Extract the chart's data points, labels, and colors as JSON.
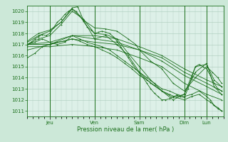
{
  "xlabel": "Pression niveau de la mer( hPa )",
  "bg_color": "#cce8d8",
  "plot_bg_color": "#ddf0e8",
  "line_color": "#1a6e1a",
  "grid_color": "#aaccbb",
  "tick_color": "#1a6e1a",
  "ylim": [
    1010.5,
    1020.5
  ],
  "yticks": [
    1011,
    1012,
    1013,
    1014,
    1015,
    1016,
    1017,
    1018,
    1019,
    1020
  ],
  "day_labels": [
    "Jeu",
    "Ven",
    "Sam",
    "Dim",
    "Lun"
  ],
  "day_positions": [
    24,
    72,
    120,
    168,
    192
  ],
  "xlim": [
    0,
    210
  ],
  "series": [
    {
      "x": [
        0,
        4,
        8,
        12,
        16,
        20,
        24,
        28,
        32,
        36,
        40,
        44,
        48,
        52,
        56,
        60,
        64,
        68,
        72,
        76,
        80,
        84,
        88,
        92,
        96,
        100,
        104,
        108,
        112,
        116,
        120,
        124,
        128,
        132,
        136,
        140,
        144,
        148,
        152,
        156,
        160,
        164,
        168,
        172,
        176,
        180,
        184,
        188,
        192,
        196,
        200,
        204,
        208
      ],
      "y": [
        1017.0,
        1017.2,
        1017.5,
        1017.7,
        1017.9,
        1017.8,
        1018.0,
        1018.5,
        1019.0,
        1019.3,
        1019.7,
        1020.0,
        1020.2,
        1020.0,
        1019.6,
        1019.1,
        1018.6,
        1018.3,
        1018.0,
        1018.1,
        1018.2,
        1018.1,
        1018.0,
        1017.7,
        1017.3,
        1016.8,
        1016.3,
        1015.8,
        1015.3,
        1014.8,
        1014.4,
        1014.0,
        1013.5,
        1013.0,
        1012.6,
        1012.3,
        1012.0,
        1012.0,
        1012.1,
        1012.3,
        1012.4,
        1012.3,
        1012.2,
        1013.0,
        1014.0,
        1015.0,
        1015.2,
        1015.0,
        1014.8,
        1014.2,
        1013.5,
        1013.0,
        1012.8
      ]
    },
    {
      "x": [
        0,
        12,
        24,
        36,
        48,
        60,
        72,
        84,
        96,
        108,
        120,
        132,
        144,
        156,
        168,
        180,
        192,
        200,
        208
      ],
      "y": [
        1017.0,
        1017.5,
        1017.8,
        1018.8,
        1020.0,
        1019.3,
        1018.0,
        1017.9,
        1017.5,
        1016.2,
        1015.0,
        1013.8,
        1012.8,
        1012.2,
        1012.5,
        1014.5,
        1015.3,
        1013.2,
        1012.5
      ]
    },
    {
      "x": [
        0,
        12,
        24,
        36,
        48,
        54,
        60,
        72,
        84,
        96,
        108,
        120,
        132,
        144,
        156,
        168,
        180,
        192,
        200,
        208
      ],
      "y": [
        1017.2,
        1017.8,
        1018.2,
        1019.0,
        1020.3,
        1020.4,
        1019.2,
        1017.5,
        1017.8,
        1017.0,
        1016.0,
        1014.5,
        1013.5,
        1012.8,
        1012.0,
        1012.5,
        1015.0,
        1015.2,
        1013.8,
        1013.2
      ]
    },
    {
      "x": [
        0,
        12,
        24,
        36,
        48,
        60,
        72,
        84,
        96,
        108,
        116,
        120,
        132,
        144,
        156,
        168,
        180,
        192,
        198,
        204,
        208
      ],
      "y": [
        1017.3,
        1018.0,
        1018.3,
        1019.0,
        1020.2,
        1019.2,
        1018.5,
        1018.4,
        1018.2,
        1017.5,
        1017.0,
        1016.5,
        1015.5,
        1014.8,
        1013.5,
        1012.8,
        1014.0,
        1015.0,
        1014.5,
        1014.0,
        1013.5
      ]
    },
    {
      "x": [
        0,
        8,
        16,
        24,
        32,
        40,
        48,
        56,
        64,
        72,
        80,
        88,
        96,
        104,
        112,
        120,
        128,
        136,
        144,
        152,
        160,
        168,
        176,
        184,
        192,
        196,
        200,
        204,
        208
      ],
      "y": [
        1017.0,
        1017.2,
        1017.5,
        1017.2,
        1017.0,
        1017.2,
        1017.8,
        1017.5,
        1017.2,
        1017.0,
        1016.8,
        1016.5,
        1016.0,
        1015.5,
        1015.0,
        1014.5,
        1014.0,
        1013.5,
        1013.0,
        1012.8,
        1012.5,
        1012.3,
        1012.5,
        1012.8,
        1012.3,
        1012.0,
        1011.5,
        1011.2,
        1011.0
      ]
    },
    {
      "x": [
        0,
        8,
        16,
        24,
        32,
        40,
        48,
        56,
        64,
        72,
        80,
        88,
        96,
        104,
        112,
        120,
        128,
        136,
        144,
        152,
        160,
        168,
        176,
        184,
        192,
        196,
        200,
        204,
        208
      ],
      "y": [
        1015.8,
        1016.2,
        1016.8,
        1017.0,
        1017.2,
        1017.3,
        1017.5,
        1017.3,
        1017.0,
        1016.8,
        1016.5,
        1016.2,
        1015.8,
        1015.3,
        1014.8,
        1014.2,
        1013.8,
        1013.3,
        1012.8,
        1012.5,
        1012.2,
        1012.0,
        1012.3,
        1012.5,
        1012.0,
        1011.8,
        1011.5,
        1011.3,
        1011.0
      ]
    },
    {
      "x": [
        0,
        24,
        48,
        72,
        96,
        120,
        144,
        168,
        192,
        208
      ],
      "y": [
        1017.0,
        1017.2,
        1017.8,
        1017.5,
        1017.2,
        1016.5,
        1015.5,
        1014.2,
        1013.2,
        1012.5
      ]
    },
    {
      "x": [
        0,
        24,
        48,
        72,
        96,
        120,
        144,
        168,
        192,
        208
      ],
      "y": [
        1016.5,
        1017.0,
        1017.8,
        1017.8,
        1017.5,
        1016.8,
        1016.0,
        1014.8,
        1013.8,
        1013.2
      ]
    },
    {
      "x": [
        0,
        24,
        48,
        72,
        96,
        120,
        144,
        168,
        192,
        208
      ],
      "y": [
        1017.0,
        1017.0,
        1017.5,
        1017.2,
        1017.0,
        1016.5,
        1015.8,
        1014.5,
        1013.5,
        1012.8
      ]
    },
    {
      "x": [
        0,
        24,
        48,
        72,
        96,
        120,
        144,
        168,
        192,
        208
      ],
      "y": [
        1016.8,
        1016.8,
        1017.0,
        1016.8,
        1016.5,
        1015.8,
        1015.0,
        1013.5,
        1012.5,
        1012.0
      ]
    }
  ]
}
